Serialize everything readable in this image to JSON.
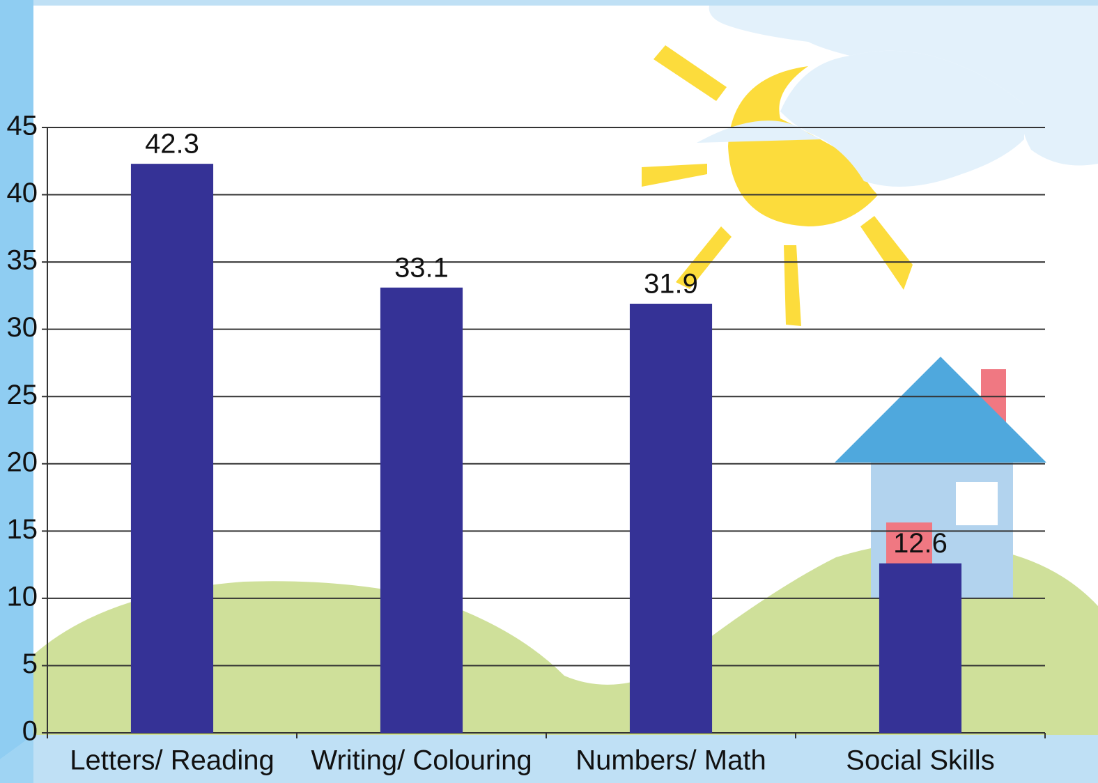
{
  "chart_data": {
    "type": "bar",
    "categories": [
      "Letters/ Reading",
      "Writing/ Colouring",
      "Numbers/ Math",
      "Social Skills"
    ],
    "values": [
      42.3,
      33.1,
      31.9,
      12.6
    ],
    "color": "#353296",
    "ylim": [
      0,
      45
    ],
    "yticks": [
      0,
      5,
      10,
      15,
      20,
      25,
      30,
      35,
      40,
      45
    ],
    "grid": true
  }
}
